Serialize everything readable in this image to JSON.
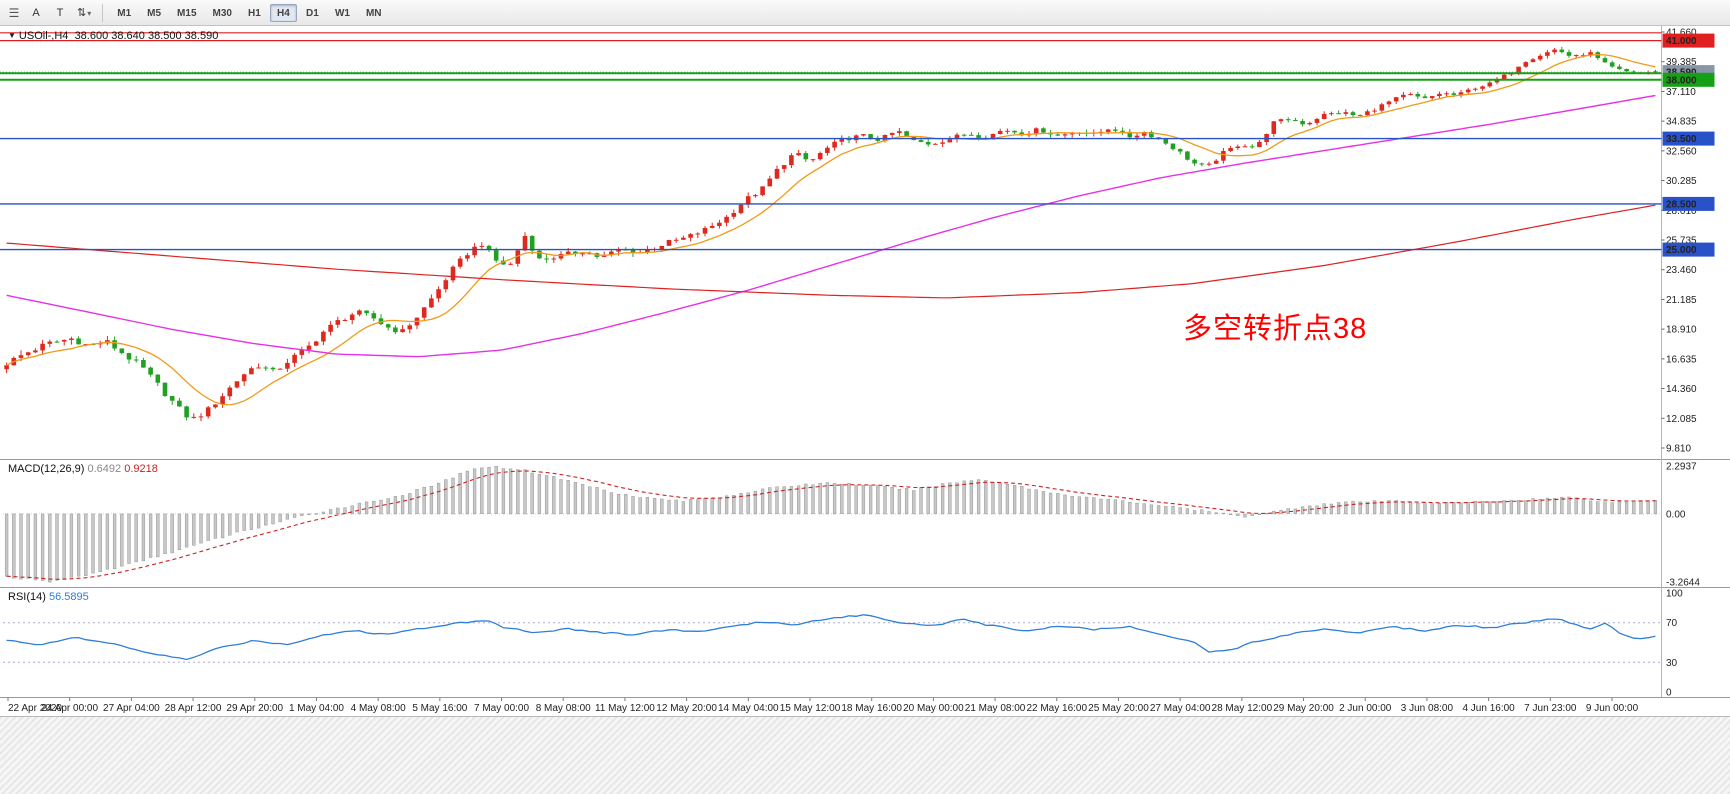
{
  "toolbar": {
    "menu_glyph": "☰",
    "tool_a": "A",
    "tool_t": "T",
    "cursor_glyph": "⇅",
    "caret_glyph": "▾",
    "timeframes": [
      "M1",
      "M5",
      "M15",
      "M30",
      "H1",
      "H4",
      "D1",
      "W1",
      "MN"
    ],
    "selected_timeframe": "H4"
  },
  "header": {
    "dropdown_icon": "▼",
    "symbol": "USOil-,H4",
    "ohlc": "38.600 38.640 38.500 38.590"
  },
  "annotation": {
    "text": "多空转折点38",
    "color": "#ff0000"
  },
  "price_axis": {
    "labels": [
      "41.660",
      "39.385",
      "37.110",
      "34.835",
      "32.560",
      "30.285",
      "28.010",
      "25.735",
      "23.460",
      "21.185",
      "18.910",
      "16.635",
      "14.360",
      "12.085",
      "9.810"
    ]
  },
  "hlines": [
    {
      "value": 41.6,
      "label": "",
      "color": "#e02020",
      "width": 1.2,
      "style": "solid",
      "badge": false
    },
    {
      "value": 41.0,
      "label": "41.000",
      "color": "#e02020",
      "width": 1.2,
      "style": "solid",
      "badge": true
    },
    {
      "value": 38.59,
      "label": "38.590",
      "color": "#8896a8",
      "width": 1,
      "style": "dot",
      "badge": true
    },
    {
      "value": 38.5,
      "label": "",
      "color": "#15a015",
      "width": 2,
      "style": "solid",
      "badge": false
    },
    {
      "value": 38.0,
      "label": "38.000",
      "color": "#15a015",
      "width": 2,
      "style": "solid",
      "badge": true
    },
    {
      "value": 33.5,
      "label": "33.500",
      "color": "#2952c8",
      "width": 1.4,
      "style": "solid",
      "badge": true
    },
    {
      "value": 28.5,
      "label": "28.500",
      "color": "#2952c8",
      "width": 1.4,
      "style": "solid",
      "badge": true
    },
    {
      "value": 25.0,
      "label": "25.000",
      "color": "#2952c8",
      "width": 1.4,
      "style": "solid",
      "badge": true
    }
  ],
  "indicators": {
    "macd": {
      "name": "MACD(12,26,9)",
      "main_value": "0.6492",
      "signal_value": "0.9218",
      "axis": [
        {
          "label": "2.2937",
          "value": 2.2937
        },
        {
          "label": "0.00",
          "value": 0
        },
        {
          "label": "-3.2644",
          "value": -3.2644
        }
      ],
      "range": [
        -3.2644,
        2.2937
      ],
      "histogram_color": "#c8c8c8",
      "signal_color": "#cc2222"
    },
    "rsi": {
      "name": "RSI(14)",
      "value": "56.5895",
      "axis": [
        {
          "label": "100",
          "value": 100
        },
        {
          "label": "70",
          "value": 70
        },
        {
          "label": "30",
          "value": 30
        },
        {
          "label": "0",
          "value": 0
        }
      ],
      "dashed_levels": [
        70,
        30
      ],
      "range": [
        0,
        100
      ],
      "line_color": "#2f7ed8"
    }
  },
  "time_axis": {
    "labels": [
      "22 Apr 2020",
      "24 Apr 00:00",
      "27 Apr 04:00",
      "28 Apr 12:00",
      "29 Apr 20:00",
      "1 May 04:00",
      "4 May 08:00",
      "5 May 16:00",
      "7 May 00:00",
      "8 May 08:00",
      "11 May 12:00",
      "12 May 20:00",
      "14 May 04:00",
      "15 May 12:00",
      "18 May 16:00",
      "20 May 00:00",
      "21 May 08:00",
      "22 May 16:00",
      "25 May 20:00",
      "27 May 04:00",
      "28 May 12:00",
      "29 May 20:00",
      "2 Jun 00:00",
      "3 Jun 08:00",
      "4 Jun 16:00",
      "7 Jun 23:00",
      "9 Jun 00:00"
    ]
  },
  "chart_data": {
    "type": "candlestick",
    "symbol": "USOil-",
    "timeframe": "H4",
    "current_bar": {
      "open": 38.6,
      "high": 38.64,
      "low": 38.5,
      "close": 38.59
    },
    "n_bars": 230,
    "price_range": [
      9.81,
      41.66
    ],
    "up_color": "#dd2a1e",
    "down_color": "#22a022",
    "close_keypoints": [
      [
        0,
        16.3
      ],
      [
        0.012,
        17.1
      ],
      [
        0.025,
        17.8
      ],
      [
        0.04,
        18.2
      ],
      [
        0.05,
        17.6
      ],
      [
        0.06,
        18.0
      ],
      [
        0.07,
        17.1
      ],
      [
        0.082,
        16.0
      ],
      [
        0.092,
        14.6
      ],
      [
        0.103,
        13.0
      ],
      [
        0.112,
        11.95
      ],
      [
        0.122,
        12.7
      ],
      [
        0.133,
        14.1
      ],
      [
        0.143,
        15.4
      ],
      [
        0.152,
        16.2
      ],
      [
        0.162,
        15.6
      ],
      [
        0.172,
        16.6
      ],
      [
        0.182,
        17.4
      ],
      [
        0.192,
        18.7
      ],
      [
        0.202,
        19.6
      ],
      [
        0.212,
        20.2
      ],
      [
        0.222,
        19.8
      ],
      [
        0.23,
        19.1
      ],
      [
        0.24,
        18.7
      ],
      [
        0.25,
        20.0
      ],
      [
        0.26,
        21.6
      ],
      [
        0.27,
        23.4
      ],
      [
        0.28,
        24.8
      ],
      [
        0.288,
        25.5
      ],
      [
        0.296,
        24.2
      ],
      [
        0.305,
        23.7
      ],
      [
        0.315,
        26.2
      ],
      [
        0.322,
        24.2
      ],
      [
        0.335,
        24.5
      ],
      [
        0.35,
        24.9
      ],
      [
        0.36,
        24.4
      ],
      [
        0.372,
        25.0
      ],
      [
        0.385,
        24.8
      ],
      [
        0.4,
        25.5
      ],
      [
        0.412,
        25.9
      ],
      [
        0.425,
        26.6
      ],
      [
        0.437,
        27.5
      ],
      [
        0.448,
        28.8
      ],
      [
        0.458,
        29.6
      ],
      [
        0.468,
        31.2
      ],
      [
        0.478,
        32.4
      ],
      [
        0.487,
        31.7
      ],
      [
        0.497,
        32.7
      ],
      [
        0.508,
        33.5
      ],
      [
        0.52,
        33.7
      ],
      [
        0.53,
        33.4
      ],
      [
        0.54,
        34.1
      ],
      [
        0.55,
        33.3
      ],
      [
        0.56,
        33.1
      ],
      [
        0.572,
        33.5
      ],
      [
        0.583,
        33.9
      ],
      [
        0.594,
        33.6
      ],
      [
        0.605,
        34.2
      ],
      [
        0.616,
        33.9
      ],
      [
        0.627,
        34.2
      ],
      [
        0.638,
        33.7
      ],
      [
        0.65,
        34.1
      ],
      [
        0.66,
        33.8
      ],
      [
        0.67,
        34.4
      ],
      [
        0.68,
        33.6
      ],
      [
        0.69,
        34.0
      ],
      [
        0.7,
        33.4
      ],
      [
        0.71,
        32.6
      ],
      [
        0.72,
        31.6
      ],
      [
        0.728,
        31.3
      ],
      [
        0.738,
        32.4
      ],
      [
        0.748,
        33.1
      ],
      [
        0.758,
        32.8
      ],
      [
        0.768,
        34.7
      ],
      [
        0.778,
        35.0
      ],
      [
        0.788,
        34.6
      ],
      [
        0.798,
        35.3
      ],
      [
        0.81,
        35.5
      ],
      [
        0.82,
        35.2
      ],
      [
        0.83,
        35.8
      ],
      [
        0.84,
        36.4
      ],
      [
        0.85,
        36.9
      ],
      [
        0.86,
        36.5
      ],
      [
        0.87,
        37.0
      ],
      [
        0.88,
        36.8
      ],
      [
        0.89,
        37.4
      ],
      [
        0.9,
        37.7
      ],
      [
        0.91,
        38.4
      ],
      [
        0.92,
        39.4
      ],
      [
        0.93,
        39.9
      ],
      [
        0.94,
        40.35
      ],
      [
        0.95,
        39.7
      ],
      [
        0.96,
        40.1
      ],
      [
        0.968,
        39.3
      ],
      [
        0.976,
        38.8
      ],
      [
        0.985,
        38.55
      ],
      [
        1,
        38.59
      ]
    ],
    "ma_fast": {
      "period": 10,
      "color": "#f09a18"
    },
    "ma_mid": {
      "color": "#e632e6",
      "keypoints": [
        [
          0,
          21.5
        ],
        [
          0.05,
          20.2
        ],
        [
          0.1,
          18.9
        ],
        [
          0.15,
          17.8
        ],
        [
          0.2,
          17.0
        ],
        [
          0.25,
          16.8
        ],
        [
          0.3,
          17.3
        ],
        [
          0.35,
          18.6
        ],
        [
          0.4,
          20.2
        ],
        [
          0.45,
          21.9
        ],
        [
          0.5,
          23.8
        ],
        [
          0.55,
          25.7
        ],
        [
          0.6,
          27.5
        ],
        [
          0.65,
          29.1
        ],
        [
          0.7,
          30.5
        ],
        [
          0.75,
          31.6
        ],
        [
          0.8,
          32.6
        ],
        [
          0.85,
          33.6
        ],
        [
          0.9,
          34.6
        ],
        [
          0.95,
          35.7
        ],
        [
          1,
          36.8
        ]
      ]
    },
    "ma_slow": {
      "color": "#dd2222",
      "keypoints": [
        [
          0,
          25.5
        ],
        [
          0.1,
          24.5
        ],
        [
          0.2,
          23.5
        ],
        [
          0.3,
          22.7
        ],
        [
          0.4,
          22.0
        ],
        [
          0.5,
          21.5
        ],
        [
          0.57,
          21.3
        ],
        [
          0.65,
          21.7
        ],
        [
          0.72,
          22.4
        ],
        [
          0.8,
          23.8
        ],
        [
          0.88,
          25.6
        ],
        [
          0.95,
          27.3
        ],
        [
          1,
          28.4
        ]
      ]
    },
    "macd_keypoints": [
      [
        0,
        -3.0
      ],
      [
        0.025,
        -3.26
      ],
      [
        0.05,
        -2.9
      ],
      [
        0.08,
        -2.3
      ],
      [
        0.11,
        -1.6
      ],
      [
        0.14,
        -0.9
      ],
      [
        0.165,
        -0.4
      ],
      [
        0.19,
        0.1
      ],
      [
        0.215,
        0.5
      ],
      [
        0.24,
        0.9
      ],
      [
        0.26,
        1.4
      ],
      [
        0.275,
        1.9
      ],
      [
        0.29,
        2.29
      ],
      [
        0.31,
        2.15
      ],
      [
        0.33,
        1.8
      ],
      [
        0.35,
        1.4
      ],
      [
        0.37,
        1.0
      ],
      [
        0.39,
        0.75
      ],
      [
        0.41,
        0.62
      ],
      [
        0.43,
        0.78
      ],
      [
        0.45,
        1.05
      ],
      [
        0.47,
        1.3
      ],
      [
        0.5,
        1.5
      ],
      [
        0.53,
        1.3
      ],
      [
        0.55,
        1.15
      ],
      [
        0.57,
        1.45
      ],
      [
        0.59,
        1.65
      ],
      [
        0.61,
        1.4
      ],
      [
        0.63,
        1.05
      ],
      [
        0.66,
        0.75
      ],
      [
        0.69,
        0.5
      ],
      [
        0.71,
        0.3
      ],
      [
        0.73,
        0.1
      ],
      [
        0.75,
        -0.12
      ],
      [
        0.77,
        0.12
      ],
      [
        0.79,
        0.4
      ],
      [
        0.81,
        0.55
      ],
      [
        0.84,
        0.62
      ],
      [
        0.87,
        0.5
      ],
      [
        0.9,
        0.6
      ],
      [
        0.93,
        0.72
      ],
      [
        0.95,
        0.8
      ],
      [
        0.97,
        0.55
      ],
      [
        1,
        0.65
      ]
    ],
    "rsi_keypoints": [
      [
        0,
        52
      ],
      [
        0.02,
        48
      ],
      [
        0.04,
        55
      ],
      [
        0.06,
        50
      ],
      [
        0.08,
        42
      ],
      [
        0.1,
        35
      ],
      [
        0.11,
        33
      ],
      [
        0.13,
        45
      ],
      [
        0.15,
        52
      ],
      [
        0.17,
        48
      ],
      [
        0.19,
        57
      ],
      [
        0.21,
        62
      ],
      [
        0.23,
        58
      ],
      [
        0.25,
        64
      ],
      [
        0.27,
        69
      ],
      [
        0.29,
        73
      ],
      [
        0.3,
        66
      ],
      [
        0.32,
        60
      ],
      [
        0.34,
        64
      ],
      [
        0.36,
        60
      ],
      [
        0.38,
        58
      ],
      [
        0.4,
        63
      ],
      [
        0.42,
        61
      ],
      [
        0.44,
        66
      ],
      [
        0.46,
        71
      ],
      [
        0.48,
        68
      ],
      [
        0.5,
        75
      ],
      [
        0.52,
        78
      ],
      [
        0.54,
        71
      ],
      [
        0.56,
        67
      ],
      [
        0.58,
        73
      ],
      [
        0.6,
        66
      ],
      [
        0.62,
        62
      ],
      [
        0.64,
        67
      ],
      [
        0.66,
        63
      ],
      [
        0.68,
        66
      ],
      [
        0.7,
        59
      ],
      [
        0.72,
        50
      ],
      [
        0.73,
        40
      ],
      [
        0.745,
        44
      ],
      [
        0.76,
        52
      ],
      [
        0.78,
        59
      ],
      [
        0.8,
        64
      ],
      [
        0.82,
        60
      ],
      [
        0.84,
        66
      ],
      [
        0.86,
        62
      ],
      [
        0.88,
        68
      ],
      [
        0.9,
        65
      ],
      [
        0.92,
        70
      ],
      [
        0.94,
        74
      ],
      [
        0.95,
        69
      ],
      [
        0.96,
        64
      ],
      [
        0.97,
        70
      ],
      [
        0.98,
        57
      ],
      [
        0.99,
        54
      ],
      [
        1,
        56.59
      ]
    ]
  }
}
